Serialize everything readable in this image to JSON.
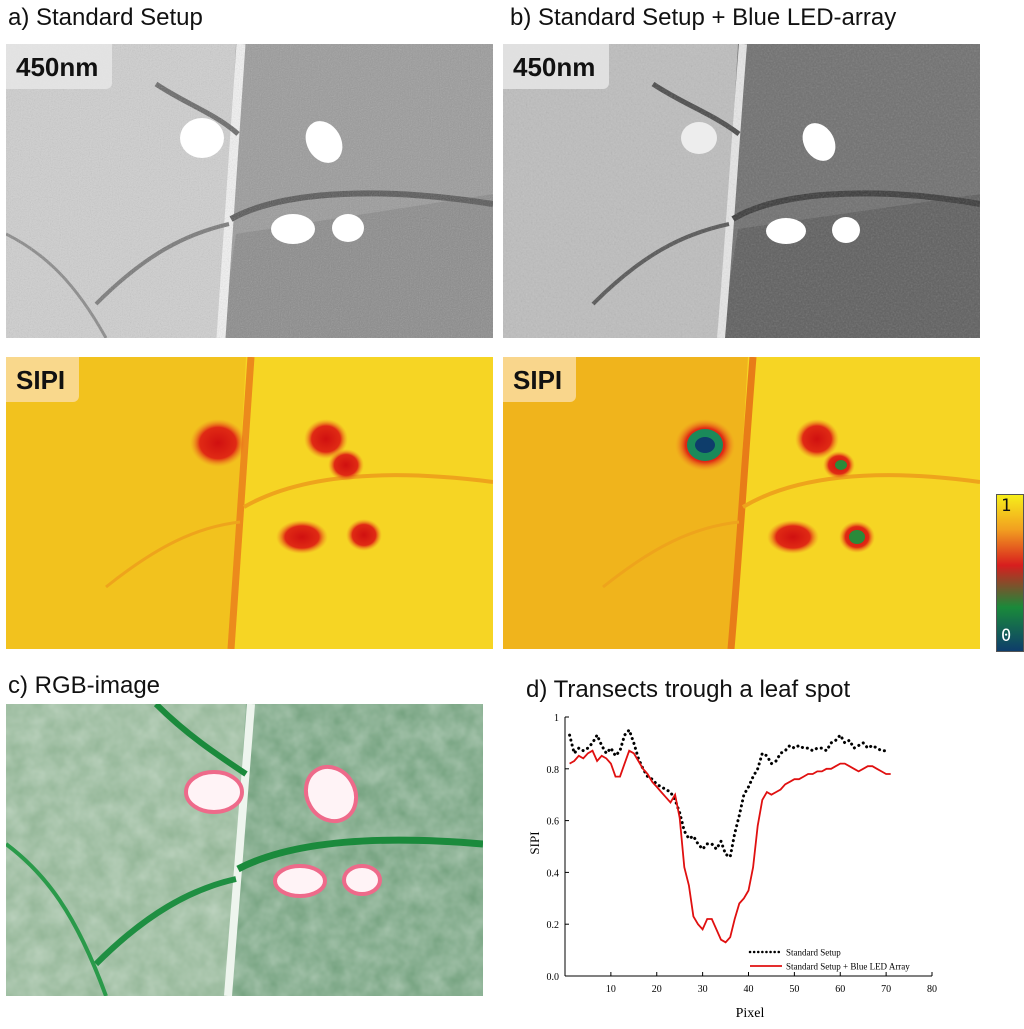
{
  "panels": {
    "a": {
      "title": "a) Standard Setup",
      "top_label": "450nm",
      "bottom_label": "SIPI"
    },
    "b": {
      "title": "b) Standard Setup + Blue LED-array",
      "top_label": "450nm",
      "bottom_label": "SIPI"
    },
    "c": {
      "title": "c) RGB-image"
    },
    "d": {
      "title": "d) Transects trough a leaf spot"
    }
  },
  "colorbar": {
    "max_label": "1",
    "min_label": "0",
    "colors": [
      "#f6ee1a",
      "#f2a020",
      "#d81e1e",
      "#1a8a3a",
      "#0e3d6b"
    ]
  },
  "chart_data": {
    "type": "line",
    "title": "",
    "xlabel": "Pixel",
    "ylabel": "SIPI",
    "xlim": [
      0,
      80
    ],
    "ylim": [
      0,
      1
    ],
    "xticks": [
      10,
      20,
      30,
      40,
      50,
      60,
      70,
      80
    ],
    "yticks": [
      "0.0",
      "0.2",
      "0.4",
      "0.6",
      "0.8",
      "1"
    ],
    "legend_position": "bottom-right",
    "series": [
      {
        "name": "Standard Setup",
        "style": "dotted",
        "color": "#000000",
        "x": [
          1,
          2,
          3,
          4,
          5,
          6,
          7,
          8,
          9,
          10,
          11,
          12,
          13,
          14,
          15,
          16,
          17,
          18,
          19,
          20,
          21,
          22,
          23,
          24,
          25,
          26,
          27,
          28,
          29,
          30,
          31,
          32,
          33,
          34,
          35,
          36,
          37,
          38,
          39,
          40,
          41,
          42,
          43,
          44,
          45,
          46,
          47,
          48,
          49,
          50,
          51,
          52,
          53,
          54,
          55,
          56,
          57,
          58,
          59,
          60,
          61,
          62,
          63,
          64,
          65,
          66,
          67,
          68,
          69,
          70
        ],
        "y": [
          0.93,
          0.86,
          0.88,
          0.87,
          0.88,
          0.9,
          0.93,
          0.89,
          0.86,
          0.88,
          0.85,
          0.87,
          0.93,
          0.95,
          0.9,
          0.84,
          0.8,
          0.77,
          0.76,
          0.74,
          0.73,
          0.72,
          0.71,
          0.68,
          0.63,
          0.56,
          0.53,
          0.54,
          0.51,
          0.49,
          0.51,
          0.51,
          0.49,
          0.52,
          0.47,
          0.46,
          0.55,
          0.62,
          0.7,
          0.73,
          0.77,
          0.8,
          0.86,
          0.85,
          0.82,
          0.83,
          0.86,
          0.87,
          0.89,
          0.88,
          0.89,
          0.88,
          0.88,
          0.87,
          0.88,
          0.88,
          0.87,
          0.9,
          0.91,
          0.93,
          0.9,
          0.91,
          0.88,
          0.89,
          0.9,
          0.88,
          0.89,
          0.88,
          0.87,
          0.87
        ]
      },
      {
        "name": "Standard Setup + Blue LED Array",
        "style": "solid",
        "color": "#e01010",
        "x": [
          1,
          2,
          3,
          4,
          5,
          6,
          7,
          8,
          9,
          10,
          11,
          12,
          13,
          14,
          15,
          16,
          17,
          18,
          19,
          20,
          21,
          22,
          23,
          24,
          25,
          26,
          27,
          28,
          29,
          30,
          31,
          32,
          33,
          34,
          35,
          36,
          37,
          38,
          39,
          40,
          41,
          42,
          43,
          44,
          45,
          46,
          47,
          48,
          49,
          50,
          51,
          52,
          53,
          54,
          55,
          56,
          57,
          58,
          59,
          60,
          61,
          62,
          63,
          64,
          65,
          66,
          67,
          68,
          69,
          70,
          71
        ],
        "y": [
          0.82,
          0.83,
          0.85,
          0.84,
          0.86,
          0.87,
          0.83,
          0.85,
          0.84,
          0.82,
          0.77,
          0.77,
          0.82,
          0.87,
          0.86,
          0.83,
          0.8,
          0.78,
          0.75,
          0.73,
          0.71,
          0.69,
          0.67,
          0.7,
          0.61,
          0.42,
          0.35,
          0.23,
          0.2,
          0.18,
          0.22,
          0.22,
          0.18,
          0.14,
          0.13,
          0.15,
          0.22,
          0.28,
          0.3,
          0.33,
          0.42,
          0.58,
          0.68,
          0.71,
          0.7,
          0.71,
          0.72,
          0.74,
          0.75,
          0.76,
          0.76,
          0.77,
          0.78,
          0.78,
          0.79,
          0.79,
          0.8,
          0.8,
          0.81,
          0.82,
          0.82,
          0.81,
          0.8,
          0.79,
          0.8,
          0.81,
          0.81,
          0.8,
          0.79,
          0.78,
          0.78
        ]
      }
    ]
  }
}
